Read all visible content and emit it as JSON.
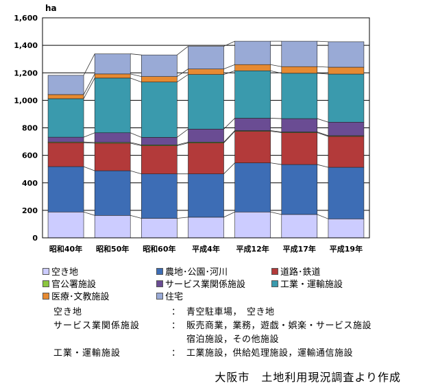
{
  "chart_data": {
    "type": "bar",
    "stacked": true,
    "unit_label": "ha",
    "title": "",
    "xlabel": "",
    "ylabel": "",
    "ylim": [
      0,
      1600
    ],
    "yticks": [
      0,
      200,
      400,
      600,
      800,
      1000,
      1200,
      1400,
      1600
    ],
    "ytick_labels": [
      "0",
      "200",
      "400",
      "600",
      "800",
      "1,000",
      "1,200",
      "1,400",
      "1,600"
    ],
    "grid": true,
    "legend_position": "bottom",
    "categories": [
      "昭和40年",
      "昭和50年",
      "昭和60年",
      "平成4年",
      "平成12年",
      "平成17年",
      "平成19年"
    ],
    "series": [
      {
        "name": "空き地",
        "color": "#ccccff",
        "values": [
          188,
          163,
          142,
          150,
          188,
          170,
          138
        ]
      },
      {
        "name": "農地･公園･河川",
        "color": "#3d6db5",
        "values": [
          330,
          325,
          323,
          315,
          357,
          363,
          375
        ]
      },
      {
        "name": "道路･鉄道",
        "color": "#b33a3a",
        "values": [
          174,
          200,
          205,
          225,
          230,
          232,
          225
        ]
      },
      {
        "name": "官公署施設",
        "color": "#8cc63f",
        "values": [
          5,
          6,
          6,
          6,
          5,
          5,
          5
        ]
      },
      {
        "name": "サービス業関係施設",
        "color": "#6a4c93",
        "values": [
          35,
          70,
          55,
          95,
          90,
          97,
          98
        ]
      },
      {
        "name": "工業・運輸施設",
        "color": "#3a9aad",
        "values": [
          280,
          398,
          402,
          397,
          345,
          330,
          350
        ]
      },
      {
        "name": "医療･文教施設",
        "color": "#e68a32",
        "values": [
          30,
          30,
          40,
          40,
          45,
          48,
          50
        ]
      },
      {
        "name": "住宅",
        "color": "#99aad6",
        "values": [
          140,
          146,
          157,
          165,
          170,
          185,
          185
        ]
      }
    ]
  },
  "notes": [
    {
      "term": "空き地",
      "colon": "：",
      "lines": [
        "青空駐車場，　空き地"
      ]
    },
    {
      "term": "サービス業関係施設",
      "colon": "：",
      "lines": [
        "販売商業，業務，遊戯・娯楽・サービス施設",
        "宿泊施設，その他施設"
      ]
    },
    {
      "term": "工業・運輸施設",
      "colon": "：",
      "lines": [
        "工業施設，供給処理施設，運輸通信施設"
      ]
    }
  ],
  "source": "大阪市　土地利用現況調査より作成"
}
